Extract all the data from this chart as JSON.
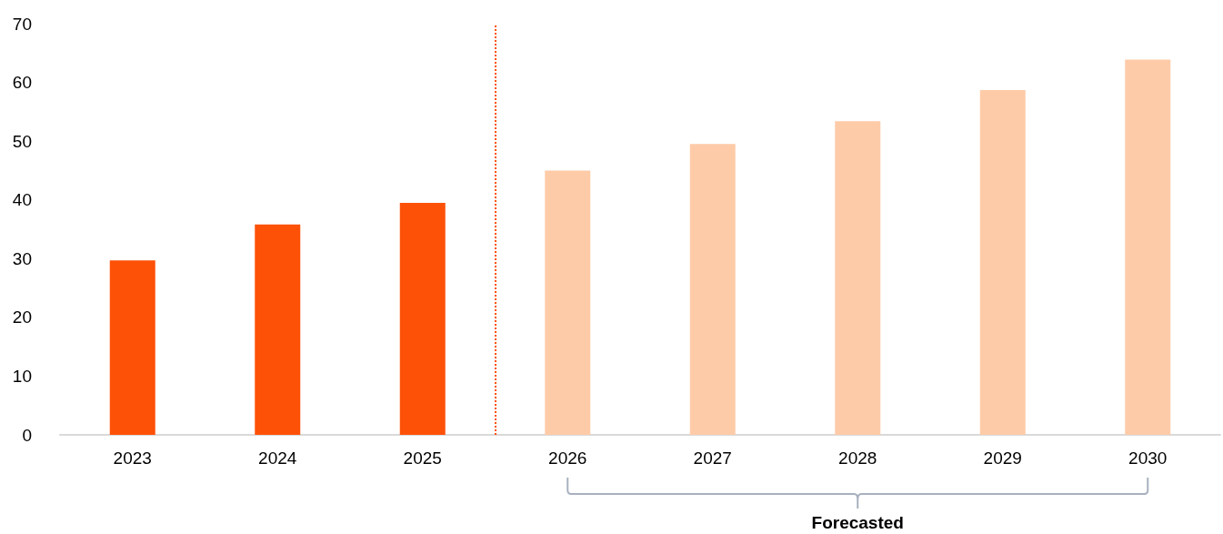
{
  "chart_data": {
    "type": "bar",
    "x": [
      2023,
      2024,
      2025,
      2026,
      2027,
      2028,
      2029,
      2030
    ],
    "values": [
      29.7,
      35.8,
      39.5,
      45.0,
      49.5,
      53.4,
      58.7,
      63.9
    ],
    "colors": [
      "#fd5108",
      "#fd5108",
      "#fd5108",
      "#fecba8",
      "#fecba8",
      "#fecba8",
      "#fecba8",
      "#fecba8"
    ],
    "xlim": [
      2022.5,
      2030.5
    ],
    "xticks": [
      2023,
      2024,
      2025,
      2026,
      2027,
      2028,
      2029,
      2030
    ],
    "ylim": [
      0,
      70
    ],
    "yticks": [
      0,
      10,
      20,
      30,
      40,
      50,
      60,
      70
    ],
    "ref_lines": [
      {
        "axis": "x",
        "value": 2025.5,
        "color": "#fd5108",
        "line_style": "dotted"
      }
    ],
    "annotations": [
      "Forecasted"
    ]
  }
}
